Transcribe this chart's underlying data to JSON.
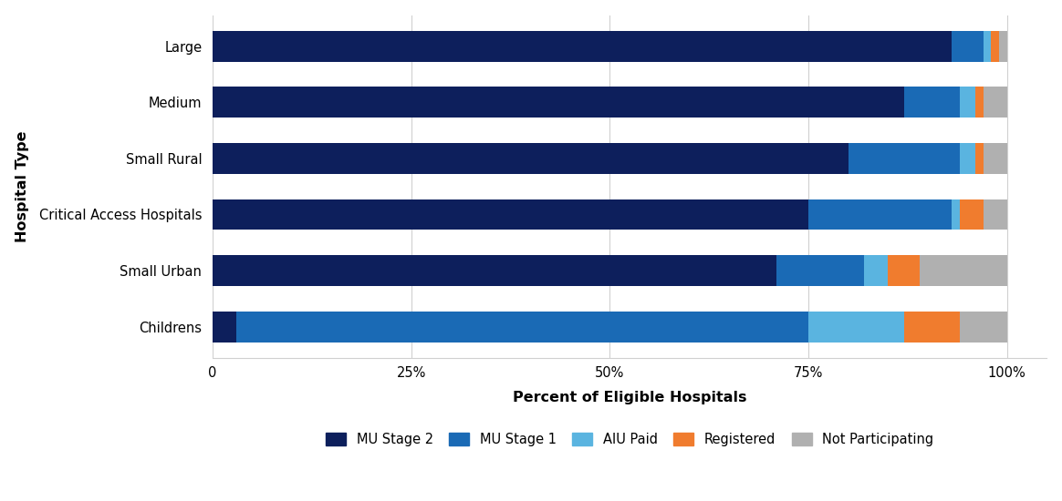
{
  "categories": [
    "Large",
    "Medium",
    "Small Rural",
    "Critical Access Hospitals",
    "Small Urban",
    "Childrens"
  ],
  "series": {
    "MU Stage 2": [
      93,
      87,
      80,
      75,
      71,
      3
    ],
    "MU Stage 1": [
      4,
      7,
      14,
      18,
      11,
      72
    ],
    "AIU Paid": [
      1,
      2,
      2,
      1,
      3,
      12
    ],
    "Registered": [
      1,
      1,
      1,
      3,
      4,
      7
    ],
    "Not Participating": [
      1,
      3,
      3,
      3,
      11,
      6
    ]
  },
  "colors": {
    "MU Stage 2": "#0d1f5c",
    "MU Stage 1": "#1a6ab5",
    "AIU Paid": "#5ab4e0",
    "Registered": "#f07c2e",
    "Not Participating": "#b0b0b0"
  },
  "xlabel": "Percent of Eligible Hospitals",
  "ylabel": "Hospital Type",
  "xticks": [
    0,
    25,
    50,
    75,
    100
  ],
  "xtick_labels": [
    "0",
    "25%",
    "50%",
    "75%",
    "100%"
  ],
  "xlim": [
    0,
    105
  ],
  "legend_order": [
    "MU Stage 2",
    "MU Stage 1",
    "AIU Paid",
    "Registered",
    "Not Participating"
  ],
  "bar_background": "#ffffff",
  "grid_color": "#d0d0d0",
  "bar_height": 0.55,
  "figsize": [
    11.64,
    5.5
  ],
  "dpi": 100
}
